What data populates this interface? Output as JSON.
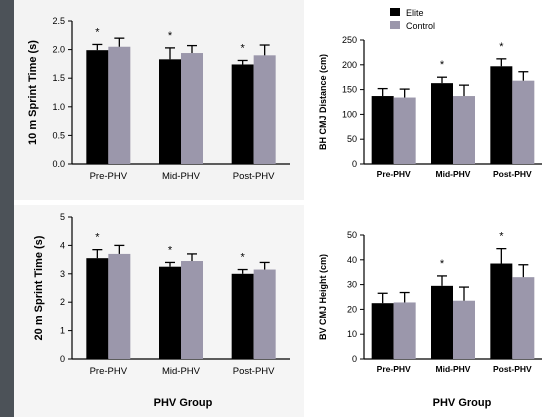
{
  "legend": {
    "entries": [
      {
        "label": "Elite",
        "color": "#000000"
      },
      {
        "label": "Control",
        "color": "#9b97ab"
      }
    ]
  },
  "x_group_label": "PHV Group",
  "chart_data": [
    {
      "type": "bar",
      "ylabel": "10 m Sprint Time (s)",
      "categories": [
        "Pre-PHV",
        "Mid-PHV",
        "Post-PHV"
      ],
      "ylim": [
        0,
        2.5
      ],
      "yticks": [
        "0.0",
        "0.5",
        "1.0",
        "1.5",
        "2.0",
        "2.5"
      ],
      "series": [
        {
          "name": "Elite",
          "values": [
            1.99,
            1.83,
            1.74
          ],
          "errors": [
            0.1,
            0.2,
            0.07
          ]
        },
        {
          "name": "Control",
          "values": [
            2.05,
            1.94,
            1.9
          ],
          "errors": [
            0.15,
            0.13,
            0.18
          ]
        }
      ],
      "significance": [
        "*",
        "*",
        "*"
      ],
      "xlabel": ""
    },
    {
      "type": "bar",
      "ylabel": "BH CMJ Distance (cm)",
      "categories": [
        "Pre-PHV",
        "Mid-PHV",
        "Post-PHV"
      ],
      "ylim": [
        0,
        250
      ],
      "yticks": [
        "0",
        "50",
        "100",
        "150",
        "200",
        "250"
      ],
      "series": [
        {
          "name": "Elite",
          "values": [
            137,
            163,
            197
          ],
          "errors": [
            15,
            12,
            15
          ]
        },
        {
          "name": "Control",
          "values": [
            134,
            137,
            168
          ],
          "errors": [
            17,
            22,
            18
          ]
        }
      ],
      "significance": [
        "",
        "*",
        "*"
      ],
      "xlabel": ""
    },
    {
      "type": "bar",
      "ylabel": "20 m Sprint Time (s)",
      "categories": [
        "Pre-PHV",
        "Mid-PHV",
        "Post-PHV"
      ],
      "ylim": [
        0,
        5
      ],
      "yticks": [
        "0",
        "1",
        "2",
        "3",
        "4",
        "5"
      ],
      "series": [
        {
          "name": "Elite",
          "values": [
            3.55,
            3.25,
            3.0
          ],
          "errors": [
            0.3,
            0.15,
            0.15
          ]
        },
        {
          "name": "Control",
          "values": [
            3.7,
            3.45,
            3.15
          ],
          "errors": [
            0.3,
            0.25,
            0.25
          ]
        }
      ],
      "significance": [
        "*",
        "*",
        "*"
      ],
      "xlabel": "PHV Group"
    },
    {
      "type": "bar",
      "ylabel": "BV CMJ Height (cm)",
      "categories": [
        "Pre-PHV",
        "Mid-PHV",
        "Post-PHV"
      ],
      "ylim": [
        0,
        50
      ],
      "yticks": [
        "0",
        "10",
        "20",
        "30",
        "40",
        "50"
      ],
      "series": [
        {
          "name": "Elite",
          "values": [
            22.5,
            29.5,
            38.5
          ],
          "errors": [
            4,
            4,
            6
          ]
        },
        {
          "name": "Control",
          "values": [
            22.8,
            23.5,
            33
          ],
          "errors": [
            4,
            5.5,
            5
          ]
        }
      ],
      "significance": [
        "",
        "*",
        "*"
      ],
      "xlabel": "PHV Group"
    }
  ]
}
